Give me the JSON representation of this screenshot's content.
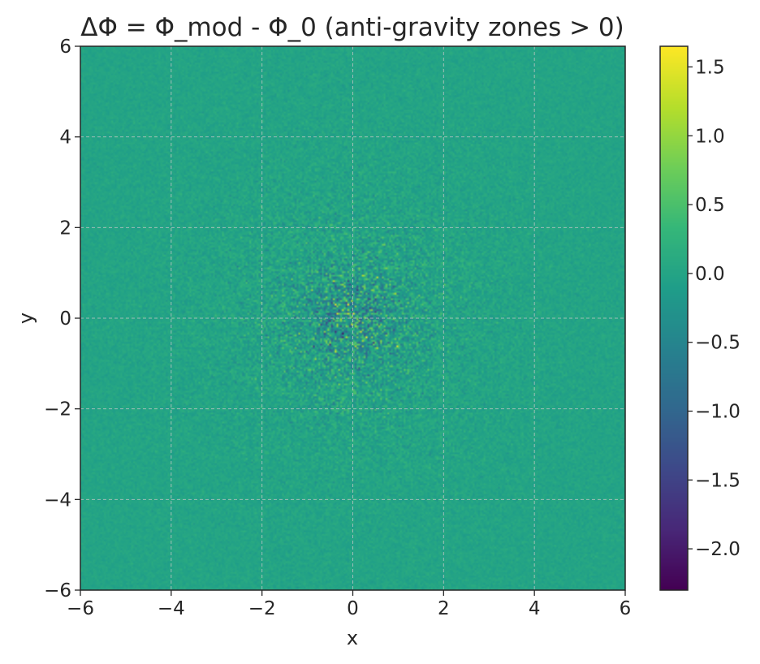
{
  "chart_data": {
    "type": "heatmap",
    "title": "ΔΦ = Φ_mod - Φ_0  (anti-gravity zones > 0)",
    "xlabel": "x",
    "ylabel": "y",
    "xlim": [
      -6,
      6
    ],
    "ylim": [
      -6,
      6
    ],
    "x_ticks": [
      -6,
      -4,
      -2,
      0,
      2,
      4,
      6
    ],
    "y_ticks": [
      -6,
      -4,
      -2,
      0,
      2,
      4,
      6
    ],
    "grid": true,
    "colormap": "viridis",
    "colorbar": {
      "vmin": -2.3,
      "vmax": 1.65,
      "ticks": [
        -2.0,
        -1.5,
        -1.0,
        -0.5,
        0.0,
        0.5,
        1.0,
        1.5
      ],
      "tick_labels": [
        "−2.0",
        "−1.5",
        "−1.0",
        "−0.5",
        "0.0",
        "0.5",
        "1.0",
        "1.5"
      ]
    },
    "description_values": {
      "background_value": 0.0,
      "center": [
        0,
        0
      ],
      "noise_amplitude_at_center": 1.9,
      "noise_decay_radius": 1.3
    },
    "colors": {
      "viridis_stops": [
        "#440154",
        "#482878",
        "#3e4989",
        "#31688e",
        "#26828e",
        "#1f9e89",
        "#35b779",
        "#6ece58",
        "#b5de2b",
        "#fde725"
      ],
      "grid": "#c8c8c8",
      "axis": "#262626"
    }
  }
}
